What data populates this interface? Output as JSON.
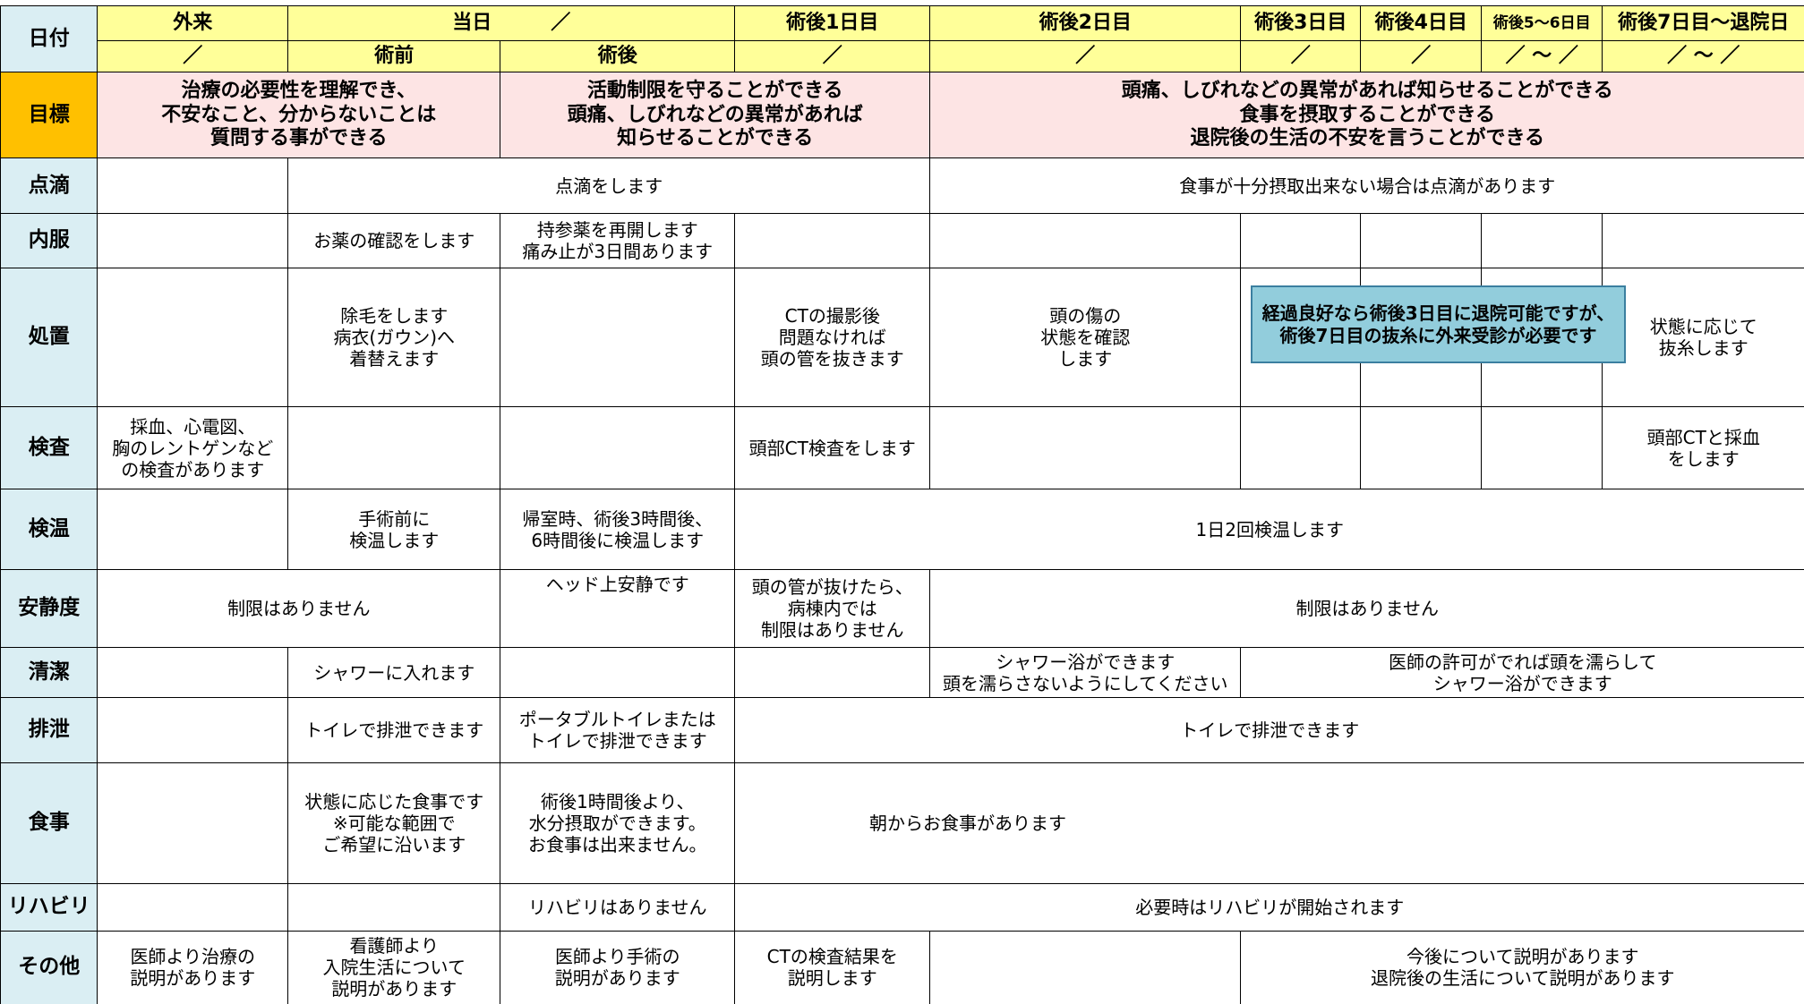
{
  "header": {
    "row1": [
      "日付",
      "外来",
      "当日　　　／",
      "術後1日目",
      "術後2日目",
      "術後3日目",
      "術後4日目",
      "術後5～6日目",
      "術後7日目～退院日"
    ],
    "row2": [
      "／",
      "術前",
      "術後",
      "／",
      "／",
      "／",
      "／",
      "／ ～ ／",
      "／ ～ ／"
    ]
  },
  "goal": {
    "label": "目標",
    "cells": [
      "治療の必要性を理解でき、\n不安なこと、分からないことは\n質問する事ができる",
      "活動制限を守ることができる\n頭痛、しびれなどの異常があれば\n知らせることができる",
      "頭痛、しびれなどの異常があれば知らせることができる\n食事を摂取することができる\n退院後の生活の不安を言うことができる"
    ]
  },
  "rows": [
    {
      "label": "点滴",
      "cells": [
        "点滴をします",
        "食事が十分摂取出来ない場合は点滴があります"
      ]
    },
    {
      "label": "内服",
      "cells": [
        "お薬の確認をします",
        "持参薬を再開します\n痛み止が3日間あります"
      ]
    },
    {
      "label": "処置",
      "cells": [
        "除毛をします\n病衣(ガウン)へ\n着替えます",
        "CTの撮影後\n問題なければ\n頭の管を抜きます",
        "頭の傷の\n状態を確認\nします",
        "状態に応じて\n抜糸します"
      ]
    },
    {
      "label": "検査",
      "cells": [
        "採血、心電図、\n胸のレントゲンなど\nの検査があります",
        "頭部CT検査をします",
        "頭部CTと採血\nをします"
      ]
    },
    {
      "label": "検温",
      "cells": [
        "手術前に\n検温します",
        "帰室時、術後3時間後、\n6時間後に検温します",
        "1日2回検温します"
      ]
    },
    {
      "label": "安静度",
      "cells": [
        "制限はありません",
        "ヘッド上安静です",
        "頭の管が抜けたら、\n病棟内では\n制限はありません",
        "制限はありません"
      ]
    },
    {
      "label": "清潔",
      "cells": [
        "シャワーに入れます",
        "シャワー浴ができます\n頭を濡らさないようにしてください",
        "医師の許可がでれば頭を濡らして\nシャワー浴ができます"
      ]
    },
    {
      "label": "排泄",
      "cells": [
        "トイレで排泄できます",
        "ポータブルトイレまたは\nトイレで排泄できます",
        "トイレで排泄できます"
      ]
    },
    {
      "label": "食事",
      "cells": [
        "状態に応じた食事です\n※可能な範囲で\nご希望に沿います",
        "術後1時間後より、\n水分摂取ができます。\nお食事は出来ません。",
        "朝からお食事があります"
      ]
    },
    {
      "label": "リハビリ",
      "cells": [
        "リハビリはありません",
        "必要時はリハビリが開始されます"
      ]
    },
    {
      "label": "その他",
      "cells": [
        "医師より治療の\n説明があります",
        "看護師より\n入院生活について\n説明があります",
        "医師より手術の\n説明があります",
        "CTの検査結果を\n説明します",
        "今後について説明があります\n退院後の生活について説明があります"
      ]
    }
  ],
  "note": "経過良好なら術後3日目に退院可能ですが、\n術後7日目の抜糸に外来受診が必要です"
}
